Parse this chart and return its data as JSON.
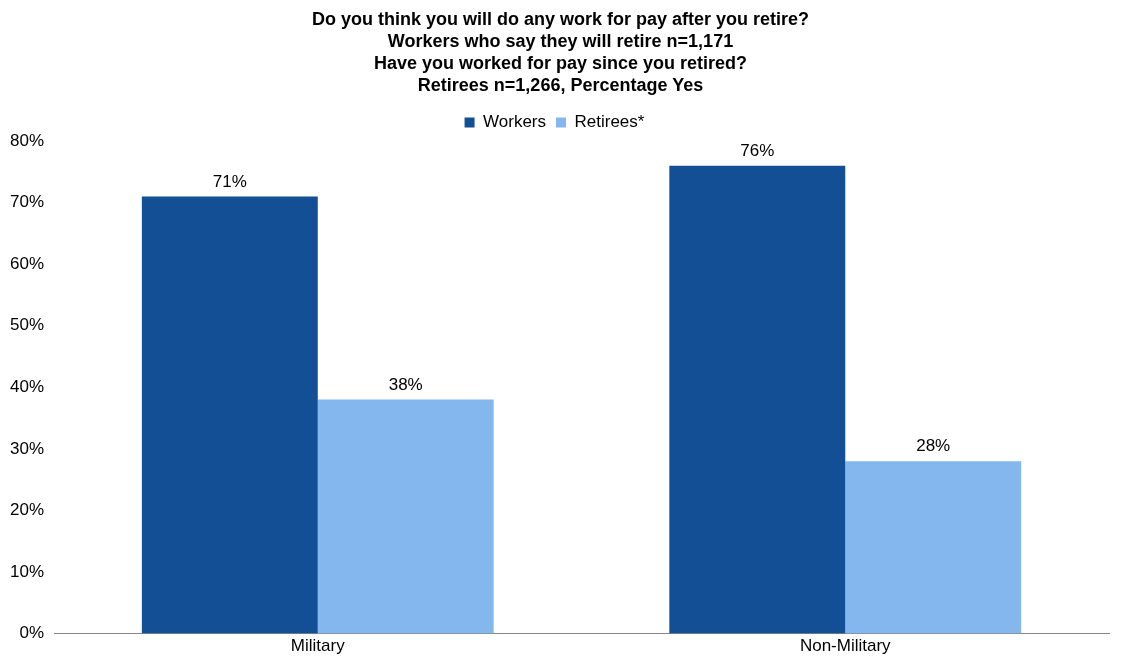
{
  "chart_data": {
    "type": "bar",
    "title": "Do you think you will do any work for pay after you retire?\nWorkers who say they will retire n=1,171\nHave you worked for pay since you retired?\nRetirees n=1,266, Percentage Yes",
    "categories": [
      "Military",
      "Non-Military"
    ],
    "series": [
      {
        "name": "Workers",
        "color": "#134f94",
        "values": [
          71,
          76
        ],
        "value_labels": [
          "71%",
          "76%"
        ]
      },
      {
        "name": "Retirees*",
        "color": "#84b7ee",
        "values": [
          38,
          28
        ],
        "value_labels": [
          "38%",
          "28%"
        ]
      }
    ],
    "ylim": [
      0,
      80
    ],
    "yticks": [
      {
        "value": 0,
        "label": "0%"
      },
      {
        "value": 10,
        "label": "10%"
      },
      {
        "value": 20,
        "label": "20%"
      },
      {
        "value": 30,
        "label": "30%"
      },
      {
        "value": 40,
        "label": "40%"
      },
      {
        "value": 50,
        "label": "50%"
      },
      {
        "value": 60,
        "label": "60%"
      },
      {
        "value": 70,
        "label": "70%"
      },
      {
        "value": 80,
        "label": "80%"
      }
    ],
    "grid": false,
    "legend": "top"
  }
}
